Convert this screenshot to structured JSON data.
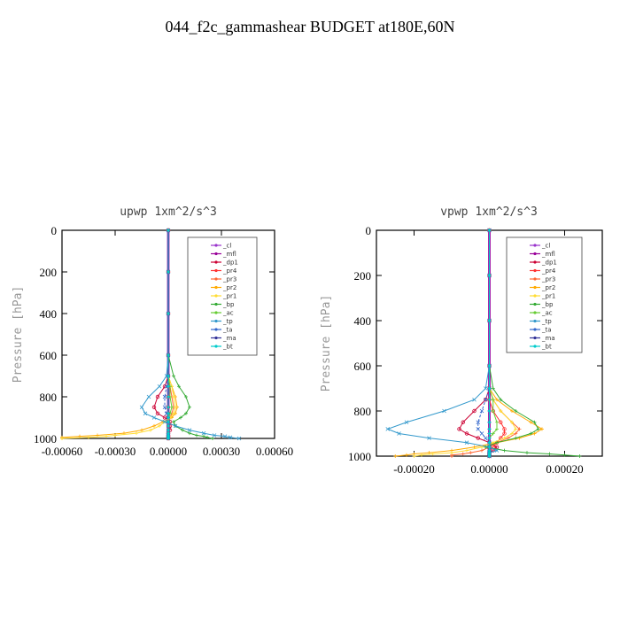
{
  "page": {
    "title": "044_f2c_gammashear  BUDGET at180E,60N"
  },
  "legend_labels": [
    "_cl",
    "_mfl",
    "_dp1",
    "_pr4",
    "_pr3",
    "_pr2",
    "_pr1",
    "_bp",
    "_ac",
    "_tp",
    "_ta",
    "_ma",
    "_bt"
  ],
  "series_colors": [
    "#9933cc",
    "#990099",
    "#cc0033",
    "#ff3333",
    "#ff6633",
    "#ffaa00",
    "#ffdd33",
    "#33aa33",
    "#66cc33",
    "#3399cc",
    "#3366cc",
    "#333399",
    "#00cccc"
  ],
  "chart_data": [
    {
      "type": "line",
      "title": "upwp  1xm^2/s^3",
      "xlabel": "",
      "ylabel": "Pressure [hPa]",
      "xlim": [
        -0.0006,
        0.0006
      ],
      "ylim": [
        1000,
        0
      ],
      "xticks": [
        -0.0006,
        -0.0003,
        0.0,
        0.0003,
        0.0006
      ],
      "xtick_labels": [
        "-0.00060",
        "-0.00030",
        "0.00000",
        "0.00030",
        "0.00060"
      ],
      "yticks": [
        0,
        200,
        400,
        600,
        800,
        1000
      ],
      "ytick_labels": [
        "0",
        "200",
        "400",
        "600",
        "800",
        "1000"
      ],
      "y": [
        0,
        200,
        400,
        600,
        700,
        750,
        800,
        850,
        880,
        900,
        920,
        940,
        960,
        975,
        985,
        990,
        995,
        1000
      ],
      "series": [
        {
          "name": "_cl",
          "values": [
            0,
            0,
            0,
            0,
            0,
            0,
            0,
            0,
            0,
            0,
            0,
            0,
            0,
            0,
            0,
            0,
            0,
            0
          ]
        },
        {
          "name": "_mfl",
          "values": [
            0,
            0,
            0,
            0,
            0,
            0,
            0,
            0,
            0,
            0,
            0,
            0,
            0,
            0,
            0,
            0,
            0,
            0
          ]
        },
        {
          "name": "_dp1",
          "values": [
            0,
            0,
            0,
            0,
            0,
            -2e-05,
            -6e-05,
            -8e-05,
            -6e-05,
            -2e-05,
            1e-05,
            1e-05,
            1e-05,
            0,
            0,
            0,
            0,
            0
          ]
        },
        {
          "name": "_pr4",
          "values": [
            0,
            0,
            0,
            0,
            0,
            0,
            0,
            0,
            0,
            0,
            0,
            0,
            0,
            0,
            0,
            0,
            0,
            0
          ]
        },
        {
          "name": "_pr3",
          "values": [
            0,
            0,
            0,
            0,
            0,
            1e-05,
            2e-05,
            3e-05,
            2e-05,
            1e-05,
            0,
            0,
            0,
            0,
            0,
            0,
            0,
            0
          ]
        },
        {
          "name": "_pr2",
          "values": [
            0,
            0,
            0,
            0,
            0,
            2e-05,
            4e-05,
            5e-05,
            4e-05,
            2e-05,
            -3e-05,
            -8e-05,
            -0.00015,
            -0.00025,
            -0.0004,
            -0.0005,
            -0.0006,
            -0.0006
          ]
        },
        {
          "name": "_pr1",
          "values": [
            0,
            0,
            0,
            0,
            0,
            2e-05,
            3e-05,
            4e-05,
            3e-05,
            1e-05,
            -2e-05,
            -5e-05,
            -0.0001,
            -0.00018,
            -0.0003,
            -0.00035,
            -0.00045,
            -0.0006
          ]
        },
        {
          "name": "_bp",
          "values": [
            0,
            0,
            0,
            0,
            3e-05,
            6e-05,
            0.0001,
            0.00012,
            0.0001,
            7e-05,
            3e-05,
            4e-05,
            8e-05,
            0.00012,
            0.00016,
            0.0002,
            0.00022,
            0.00025
          ]
        },
        {
          "name": "_ac",
          "values": [
            0,
            0,
            0,
            0,
            0,
            1e-05,
            1e-05,
            2e-05,
            1e-05,
            0,
            0,
            0,
            0,
            0,
            0,
            0,
            0,
            0
          ]
        },
        {
          "name": "_tp",
          "values": [
            0,
            0,
            0,
            0,
            -1e-05,
            -5e-05,
            -0.00011,
            -0.00015,
            -0.00013,
            -8e-05,
            -2e-05,
            4e-05,
            0.00012,
            0.0002,
            0.00026,
            0.00032,
            0.00035,
            0.0004
          ]
        },
        {
          "name": "_ta",
          "values": [
            0,
            0,
            0,
            0,
            0,
            -1e-05,
            -2e-05,
            -2e-05,
            -1e-05,
            0,
            0,
            0,
            0,
            0,
            0,
            0,
            0,
            0
          ]
        },
        {
          "name": "_ma",
          "values": [
            0,
            0,
            0,
            0,
            0,
            0,
            0,
            0,
            0,
            0,
            0,
            0,
            0,
            0,
            0,
            0,
            0,
            0
          ]
        },
        {
          "name": "_bt",
          "values": [
            0,
            0,
            0,
            0,
            0,
            0,
            0,
            0,
            0,
            0,
            0,
            0,
            0,
            0,
            0,
            0,
            0,
            0
          ]
        }
      ],
      "legend": "top-right"
    },
    {
      "type": "line",
      "title": "vpwp  1xm^2/s^3",
      "xlabel": "",
      "ylabel": "Pressure [hPa]",
      "xlim": [
        -0.0003,
        0.0003
      ],
      "ylim": [
        1000,
        0
      ],
      "xticks": [
        -0.0002,
        0.0,
        0.0002
      ],
      "xtick_labels": [
        "-0.00020",
        "0.00000",
        "0.00020"
      ],
      "yticks": [
        0,
        200,
        400,
        600,
        800,
        1000
      ],
      "ytick_labels": [
        "0",
        "200",
        "400",
        "600",
        "800",
        "1000"
      ],
      "y": [
        0,
        200,
        400,
        600,
        700,
        750,
        800,
        850,
        880,
        900,
        920,
        940,
        960,
        975,
        985,
        990,
        995,
        1000
      ],
      "series": [
        {
          "name": "_cl",
          "values": [
            0,
            0,
            0,
            0,
            0,
            0,
            0,
            0,
            0,
            0,
            0,
            0,
            0,
            0,
            0,
            0,
            0,
            0
          ]
        },
        {
          "name": "_mfl",
          "values": [
            0,
            0,
            0,
            0,
            0,
            0,
            0,
            0,
            0,
            0,
            0,
            0,
            0,
            0,
            0,
            0,
            0,
            0
          ]
        },
        {
          "name": "_dp1",
          "values": [
            0,
            0,
            0,
            0,
            0,
            -1e-05,
            -4e-05,
            -7e-05,
            -8e-05,
            -6e-05,
            -3e-05,
            0,
            2e-05,
            1e-05,
            0,
            0,
            0,
            0
          ]
        },
        {
          "name": "_pr4",
          "values": [
            0,
            0,
            0,
            0,
            0,
            0,
            1e-05,
            3e-05,
            4e-05,
            4e-05,
            3e-05,
            2e-05,
            1e-05,
            0,
            0,
            0,
            0,
            0
          ]
        },
        {
          "name": "_pr3",
          "values": [
            0,
            0,
            0,
            0,
            0,
            1e-05,
            3e-05,
            6e-05,
            8e-05,
            7e-05,
            5e-05,
            2e-05,
            0,
            -2e-05,
            -5e-05,
            -7e-05,
            -0.0001,
            -0.0001
          ]
        },
        {
          "name": "_pr2",
          "values": [
            0,
            0,
            0,
            0,
            0,
            2e-05,
            6e-05,
            0.00011,
            0.00014,
            0.00012,
            8e-05,
            2e-05,
            -4e-05,
            -0.0001,
            -0.00016,
            -0.0002,
            -0.00022,
            -0.00025
          ]
        },
        {
          "name": "_pr1",
          "values": [
            0,
            0,
            0,
            0,
            0,
            1e-05,
            3e-05,
            6e-05,
            7e-05,
            6e-05,
            4e-05,
            1e-05,
            -2e-05,
            -6e-05,
            -0.0001,
            -0.00015,
            -0.00018,
            -0.0002
          ]
        },
        {
          "name": "_bp",
          "values": [
            0,
            0,
            0,
            0,
            1e-05,
            3e-05,
            7e-05,
            0.00012,
            0.00013,
            0.00011,
            7e-05,
            2e-05,
            -1e-05,
            4e-05,
            0.0001,
            0.00016,
            0.0002,
            0.00024
          ]
        },
        {
          "name": "_ac",
          "values": [
            0,
            0,
            0,
            0,
            0,
            1e-05,
            1e-05,
            2e-05,
            2e-05,
            1e-05,
            0,
            0,
            0,
            0,
            0,
            0,
            0,
            0
          ]
        },
        {
          "name": "_tp",
          "values": [
            0,
            0,
            0,
            0,
            -1e-05,
            -4e-05,
            -0.00012,
            -0.00022,
            -0.00027,
            -0.00024,
            -0.00016,
            -6e-05,
            0,
            2e-05,
            0,
            0,
            0,
            0
          ]
        },
        {
          "name": "_ta",
          "values": [
            0,
            0,
            0,
            0,
            0,
            -1e-05,
            -2e-05,
            -3e-05,
            -3e-05,
            -2e-05,
            -1e-05,
            0,
            0,
            0,
            0,
            0,
            0,
            0
          ]
        },
        {
          "name": "_ma",
          "values": [
            0,
            0,
            0,
            0,
            0,
            0,
            0,
            0,
            0,
            0,
            0,
            0,
            0,
            0,
            0,
            0,
            0,
            0
          ]
        },
        {
          "name": "_bt",
          "values": [
            0,
            0,
            0,
            0,
            0,
            0,
            0,
            0,
            0,
            0,
            0,
            0,
            0,
            0,
            0,
            0,
            0,
            0
          ]
        }
      ],
      "legend": "top-right"
    }
  ]
}
